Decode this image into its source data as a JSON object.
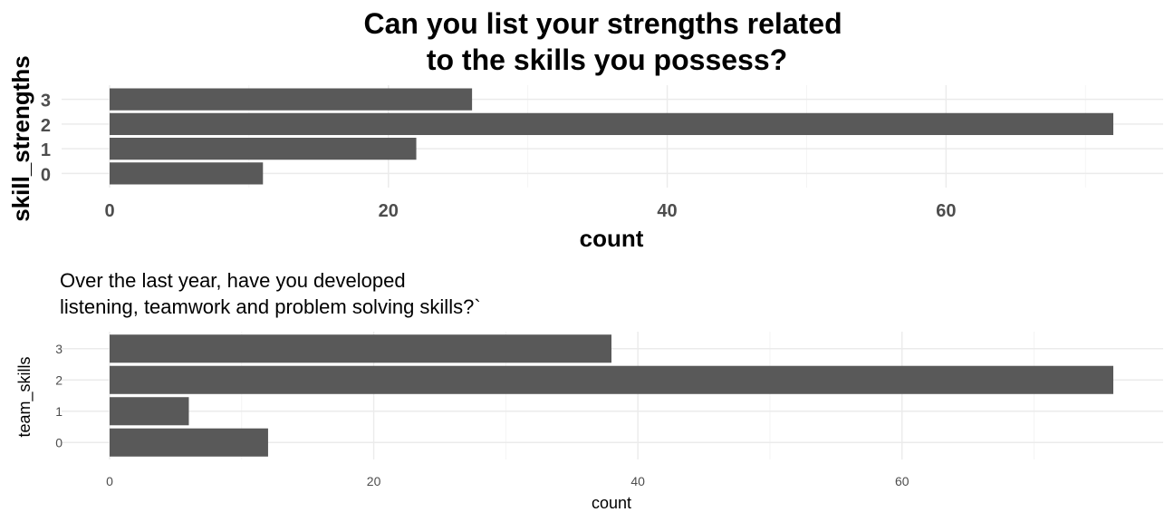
{
  "chart_data": [
    {
      "type": "bar",
      "orientation": "horizontal",
      "title": "Can you list your strengths related\n to the skills you possess?",
      "xlabel": "count",
      "ylabel": "skill_strengths",
      "categories": [
        "0",
        "1",
        "2",
        "3"
      ],
      "values": [
        11,
        22,
        72,
        26
      ],
      "xlim": [
        0,
        75
      ],
      "xticks": [
        0,
        20,
        40,
        60
      ],
      "bar_color": "#595959",
      "grid": true
    },
    {
      "type": "bar",
      "orientation": "horizontal",
      "title": "Over the last year, have you developed\n listening, teamwork and problem solving skills?`",
      "xlabel": "count",
      "ylabel": "team_skills",
      "categories": [
        "0",
        "1",
        "2",
        "3"
      ],
      "values": [
        12,
        6,
        76,
        38
      ],
      "xlim": [
        0,
        79
      ],
      "xticks": [
        0,
        20,
        40,
        60
      ],
      "bar_color": "#595959",
      "grid": true
    }
  ]
}
